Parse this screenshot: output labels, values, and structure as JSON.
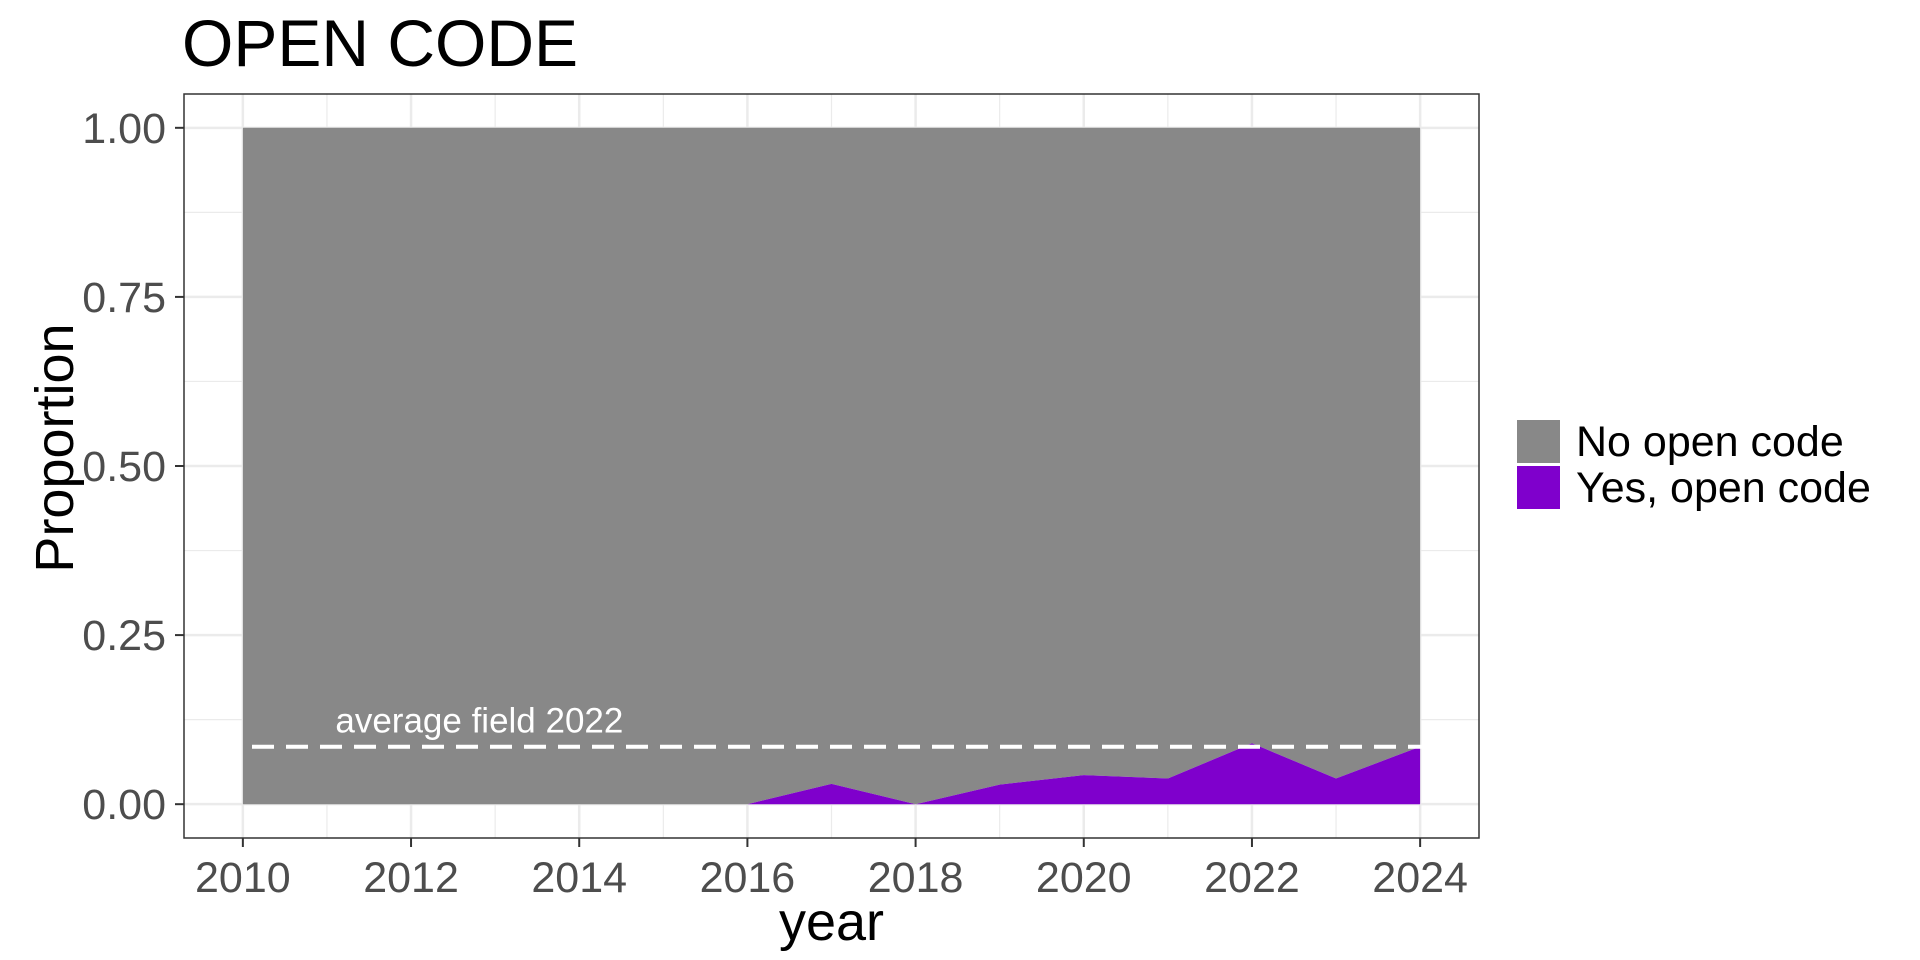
{
  "chart_data": {
    "type": "area",
    "title": "OPEN CODE",
    "xlabel": "year",
    "ylabel": "Proportion",
    "x": [
      2010,
      2011,
      2012,
      2013,
      2014,
      2015,
      2016,
      2017,
      2018,
      2019,
      2020,
      2021,
      2022,
      2023,
      2024
    ],
    "series": [
      {
        "name": "No open code",
        "color": "#888888",
        "values": [
          1.0,
          1.0,
          1.0,
          1.0,
          1.0,
          1.0,
          1.0,
          0.97,
          1.0,
          0.971,
          0.957,
          0.962,
          0.91,
          0.962,
          0.915
        ]
      },
      {
        "name": "Yes, open code",
        "color": "#7f00cc",
        "values": [
          0,
          0,
          0,
          0,
          0,
          0,
          0,
          0.03,
          0,
          0.029,
          0.043,
          0.038,
          0.09,
          0.038,
          0.085
        ]
      }
    ],
    "stacked": true,
    "xlim": [
      2009.3,
      2024.7
    ],
    "ylim": [
      -0.05,
      1.05
    ],
    "xticks": [
      "2010",
      "2012",
      "2014",
      "2016",
      "2018",
      "2020",
      "2022",
      "2024"
    ],
    "yticks": [
      "0.00",
      "0.25",
      "0.50",
      "0.75",
      "1.00"
    ],
    "reference_line": {
      "value": 0.085,
      "style": "dashed",
      "color": "#ffffff",
      "label": "average field 2022"
    },
    "grid": true,
    "legend_position": "right"
  }
}
